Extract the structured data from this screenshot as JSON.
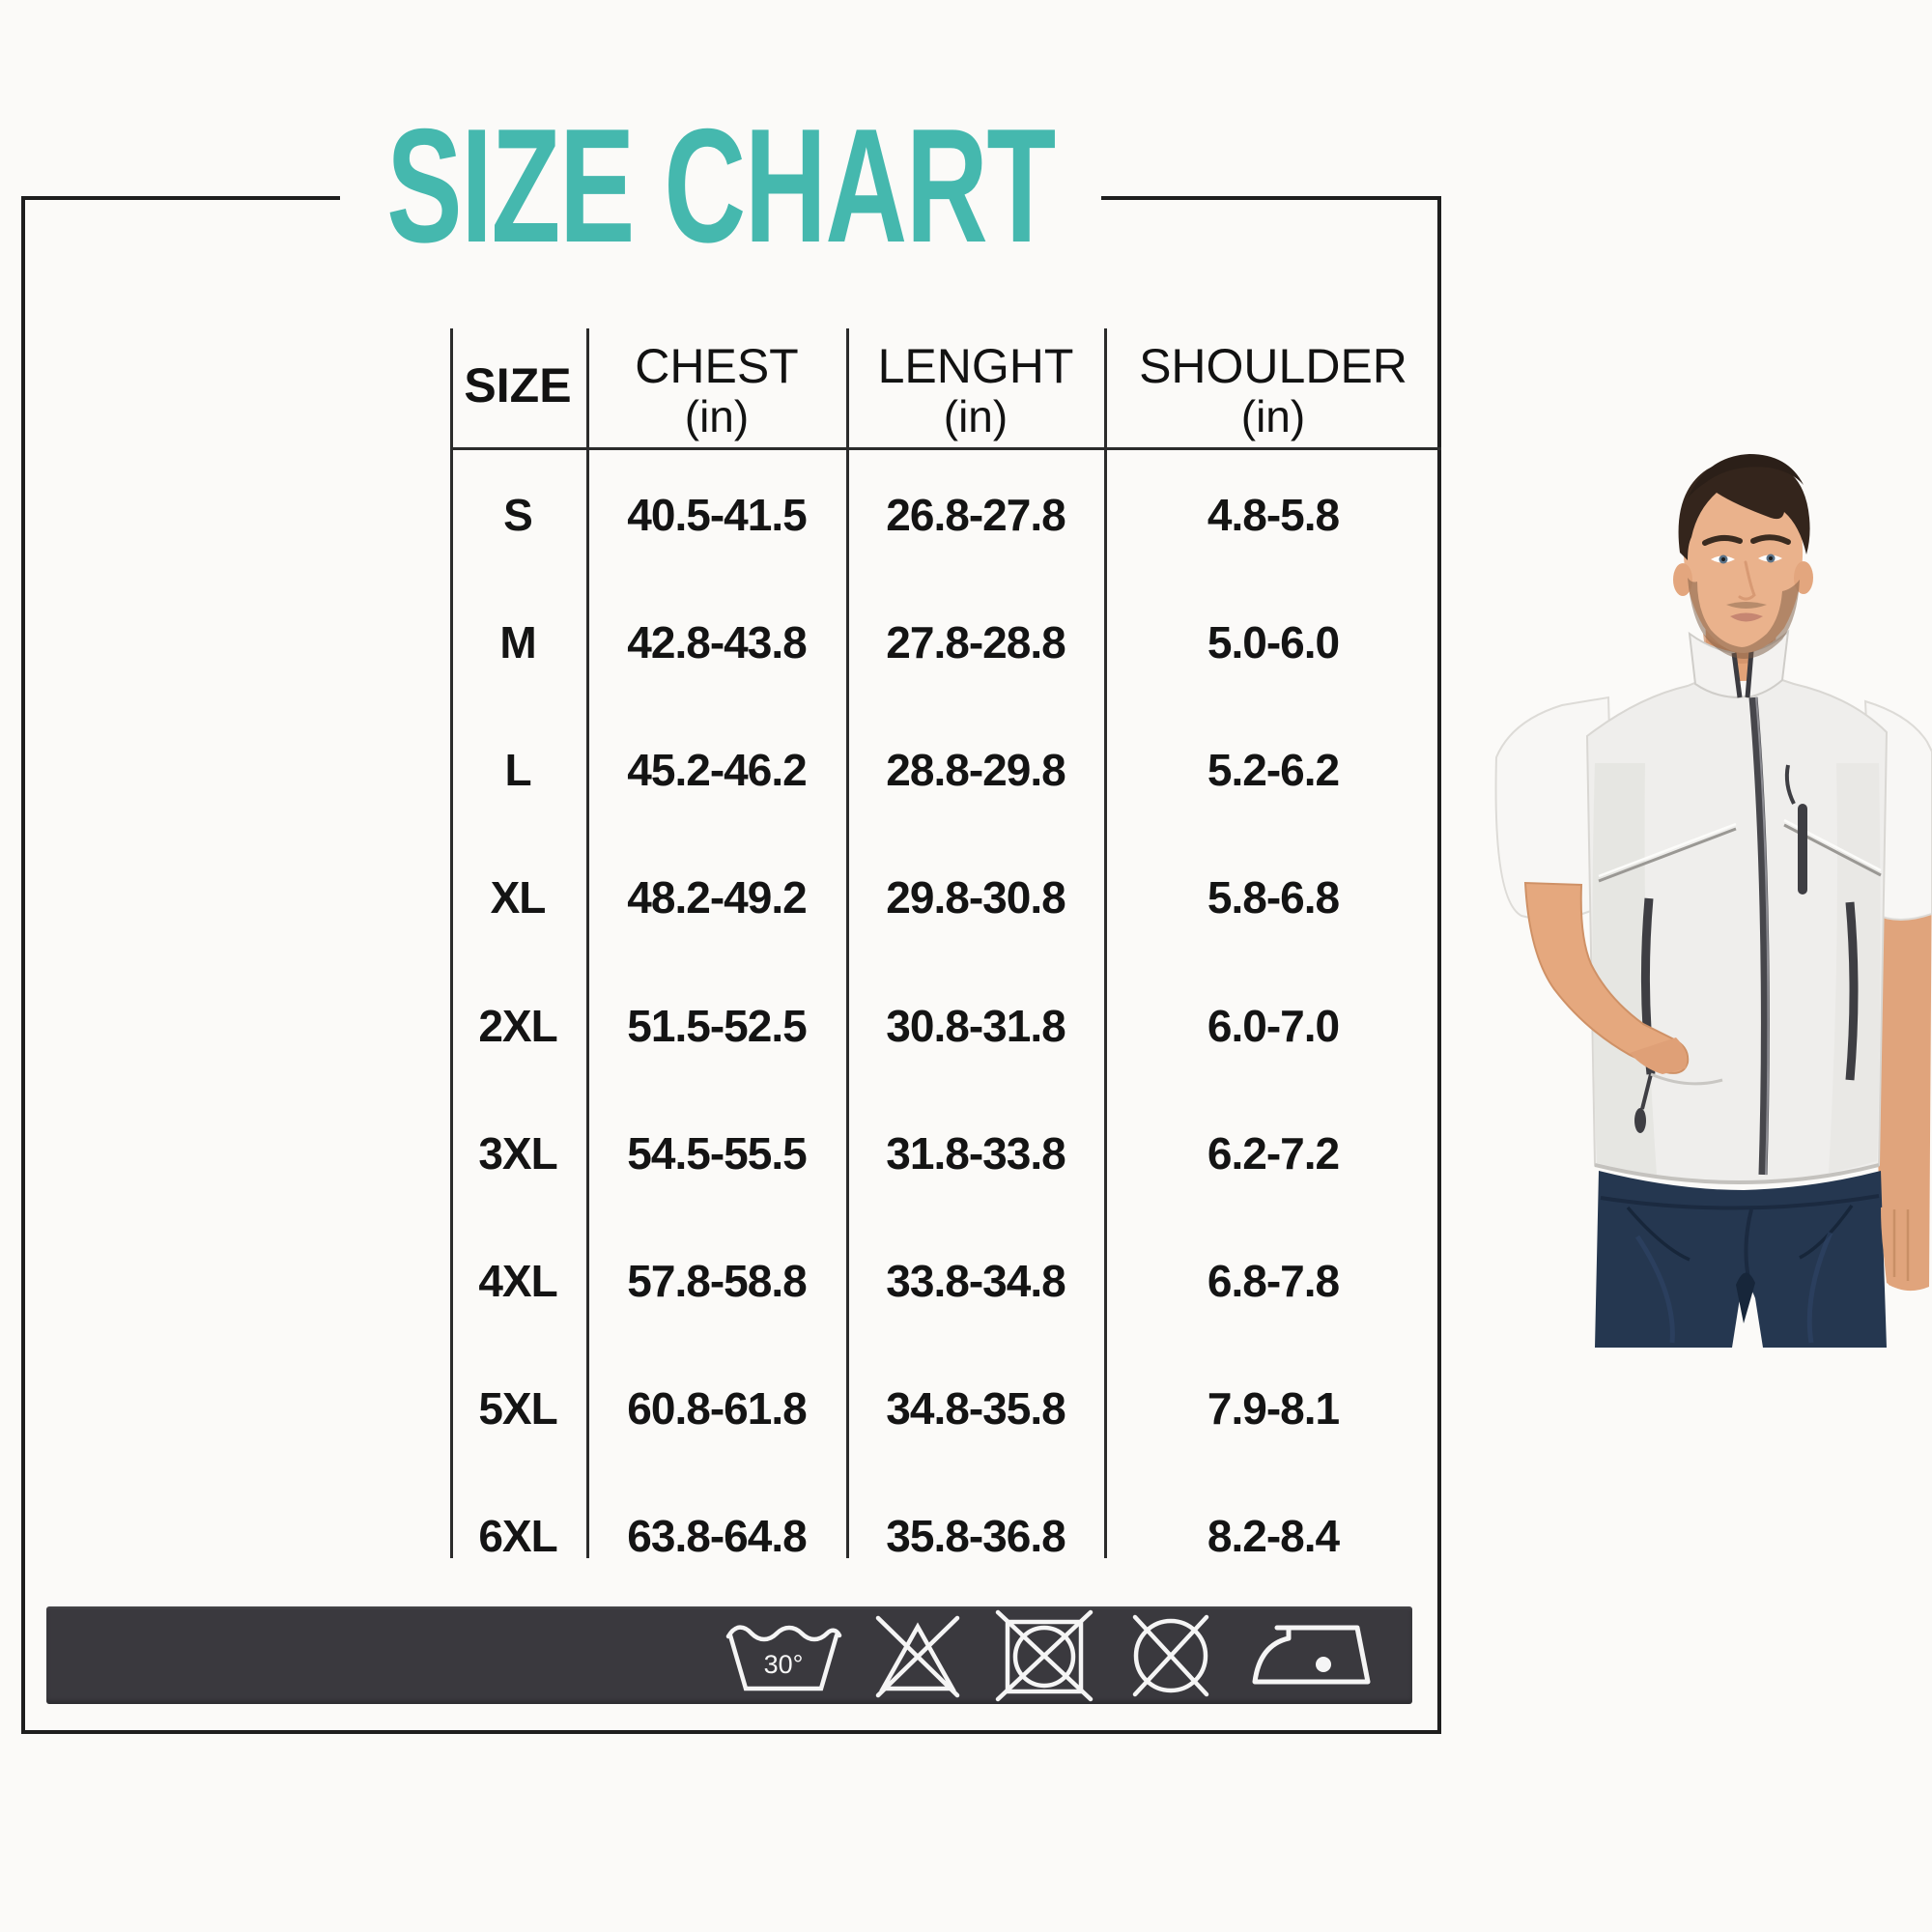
{
  "title": {
    "text": "SIZE CHART"
  },
  "colors": {
    "accent_teal": "#45b8ae",
    "frame_line": "#1e1e1e",
    "table_line": "#2b2b2b",
    "text": "#141414",
    "care_bar_background": "#3a393e",
    "care_icon_stroke": "#f5f5f5",
    "page_background": "#fbfaf8"
  },
  "table": {
    "headers": [
      {
        "label": "SIZE",
        "unit": ""
      },
      {
        "label": "CHEST",
        "unit": "(in)"
      },
      {
        "label": "LENGHT",
        "unit": "(in)"
      },
      {
        "label": "SHOULDER",
        "unit": "(in)"
      }
    ],
    "rows": [
      {
        "size": "S",
        "chest": "40.5-41.5",
        "lenght": "26.8-27.8",
        "shoulder": "4.8-5.8"
      },
      {
        "size": "M",
        "chest": "42.8-43.8",
        "lenght": "27.8-28.8",
        "shoulder": "5.0-6.0"
      },
      {
        "size": "L",
        "chest": "45.2-46.2",
        "lenght": "28.8-29.8",
        "shoulder": "5.2-6.2"
      },
      {
        "size": "XL",
        "chest": "48.2-49.2",
        "lenght": "29.8-30.8",
        "shoulder": "5.8-6.8"
      },
      {
        "size": "2XL",
        "chest": "51.5-52.5",
        "lenght": "30.8-31.8",
        "shoulder": "6.0-7.0"
      },
      {
        "size": "3XL",
        "chest": "54.5-55.5",
        "lenght": "31.8-33.8",
        "shoulder": "6.2-7.2"
      },
      {
        "size": "4XL",
        "chest": "57.8-58.8",
        "lenght": "33.8-34.8",
        "shoulder": "6.8-7.8"
      },
      {
        "size": "5XL",
        "chest": "60.8-61.8",
        "lenght": "34.8-35.8",
        "shoulder": "7.9-8.1"
      },
      {
        "size": "6XL",
        "chest": "63.8-64.8",
        "lenght": "35.8-36.8",
        "shoulder": "8.2-8.4"
      }
    ]
  },
  "care_bar": {
    "icons": [
      {
        "name": "machine-wash-30-icon",
        "label": "30°"
      },
      {
        "name": "do-not-bleach-icon",
        "label": ""
      },
      {
        "name": "do-not-tumble-dry-icon",
        "label": ""
      },
      {
        "name": "do-not-dry-clean-icon",
        "label": ""
      },
      {
        "name": "iron-one-dot-icon",
        "label": ""
      }
    ]
  },
  "photo": {
    "alt": "Man wearing a light gray sleeveless zip vest over a white t-shirt with dark blue jeans, one hand in vest pocket"
  }
}
